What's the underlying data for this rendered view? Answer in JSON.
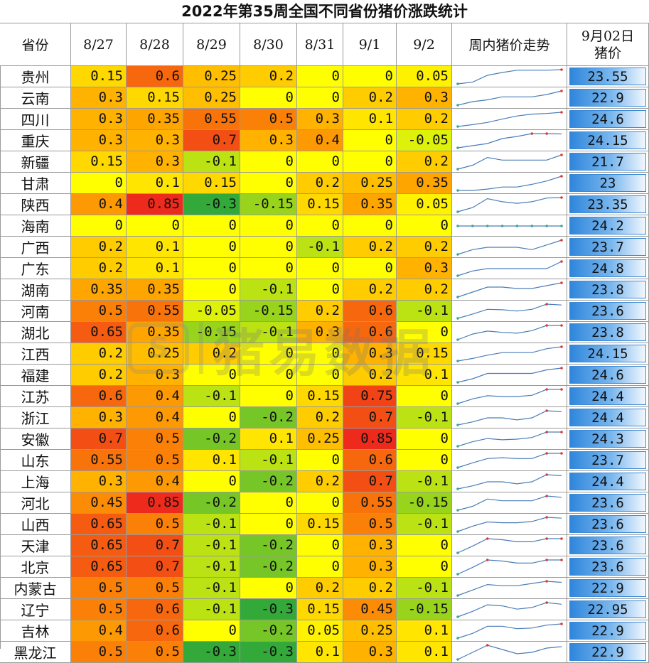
{
  "title": "2022年第35周全国不同省份猪价涨跌统计",
  "headers": {
    "province": "省份",
    "dates": [
      "8/27",
      "8/28",
      "8/29",
      "8/30",
      "8/31",
      "9/1",
      "9/2"
    ],
    "trend": "周内猪价走势",
    "price_line1": "9月02日",
    "price_line2": "猪价"
  },
  "watermark": {
    "logo": "S",
    "text": "猪易数据"
  },
  "colors": {
    "scale_neg_strong": "#33a93a",
    "scale_zero": "#ffff00",
    "scale_pos_mid": "#ffa500",
    "scale_pos_strong": "#ee2a1c",
    "trend_line": "#4a7db8",
    "trend_start": "#3aa88a",
    "trend_end": "#d83a3a",
    "price_bar": "#2f86dc"
  },
  "rows": [
    {
      "province": "贵州",
      "changes": [
        "0.15",
        "0.6",
        "0.25",
        "0.2",
        "0",
        "0",
        "0.05"
      ],
      "price": "23.55"
    },
    {
      "province": "云南",
      "changes": [
        "0.3",
        "0.15",
        "0.25",
        "0",
        "0",
        "0.2",
        "0.3"
      ],
      "price": "22.9"
    },
    {
      "province": "四川",
      "changes": [
        "0.3",
        "0.35",
        "0.55",
        "0.5",
        "0.3",
        "0.1",
        "0.2"
      ],
      "price": "24.6"
    },
    {
      "province": "重庆",
      "changes": [
        "0.3",
        "0.3",
        "0.7",
        "0.3",
        "0.4",
        "0",
        "-0.05"
      ],
      "price": "24.15"
    },
    {
      "province": "新疆",
      "changes": [
        "0.15",
        "0.3",
        "-0.1",
        "0",
        "0",
        "0",
        "0.2"
      ],
      "price": "21.7"
    },
    {
      "province": "甘肃",
      "changes": [
        "0",
        "0.1",
        "0.15",
        "0",
        "0.2",
        "0.25",
        "0.35"
      ],
      "price": "23"
    },
    {
      "province": "陕西",
      "changes": [
        "0.4",
        "0.85",
        "-0.3",
        "-0.15",
        "0.15",
        "0.35",
        "0.05"
      ],
      "price": "23.35"
    },
    {
      "province": "海南",
      "changes": [
        "0",
        "0",
        "0",
        "0",
        "0",
        "0",
        "0"
      ],
      "price": "24.2"
    },
    {
      "province": "广西",
      "changes": [
        "0.2",
        "0.1",
        "0",
        "0",
        "-0.1",
        "0.2",
        "0.2"
      ],
      "price": "23.7"
    },
    {
      "province": "广东",
      "changes": [
        "0.2",
        "0.1",
        "0",
        "0",
        "0",
        "0",
        "0.3"
      ],
      "price": "24.8"
    },
    {
      "province": "湖南",
      "changes": [
        "0.35",
        "0.35",
        "0",
        "-0.1",
        "0",
        "0.2",
        "0.2"
      ],
      "price": "23.8"
    },
    {
      "province": "河南",
      "changes": [
        "0.5",
        "0.55",
        "-0.05",
        "-0.15",
        "0.2",
        "0.6",
        "-0.1"
      ],
      "price": "23.6"
    },
    {
      "province": "湖北",
      "changes": [
        "0.65",
        "0.35",
        "-0.15",
        "-0.1",
        "0.3",
        "0.6",
        "0"
      ],
      "price": "23.8"
    },
    {
      "province": "江西",
      "changes": [
        "0.2",
        "0.25",
        "0.2",
        "0",
        "0",
        "0.3",
        "0.15"
      ],
      "price": "24.15"
    },
    {
      "province": "福建",
      "changes": [
        "0.2",
        "0.3",
        "0",
        "0",
        "0",
        "0.2",
        "0.1"
      ],
      "price": "24.6"
    },
    {
      "province": "江苏",
      "changes": [
        "0.6",
        "0.4",
        "-0.1",
        "0",
        "0.15",
        "0.75",
        "0"
      ],
      "price": "24.4"
    },
    {
      "province": "浙江",
      "changes": [
        "0.3",
        "0.4",
        "0",
        "-0.2",
        "0.2",
        "0.7",
        "-0.1"
      ],
      "price": "24.4"
    },
    {
      "province": "安徽",
      "changes": [
        "0.7",
        "0.5",
        "-0.2",
        "0.1",
        "0.25",
        "0.85",
        "0"
      ],
      "price": "24.3"
    },
    {
      "province": "山东",
      "changes": [
        "0.55",
        "0.5",
        "0.1",
        "-0.1",
        "0",
        "0.6",
        "0"
      ],
      "price": "23.7"
    },
    {
      "province": "上海",
      "changes": [
        "0.3",
        "0.4",
        "0",
        "-0.2",
        "0.2",
        "0.7",
        "-0.1"
      ],
      "price": "24.4"
    },
    {
      "province": "河北",
      "changes": [
        "0.45",
        "0.85",
        "-0.2",
        "0",
        "0",
        "0.55",
        "-0.15"
      ],
      "price": "23.6"
    },
    {
      "province": "山西",
      "changes": [
        "0.65",
        "0.5",
        "-0.1",
        "0",
        "0.15",
        "0.5",
        "-0.1"
      ],
      "price": "23.6"
    },
    {
      "province": "天津",
      "changes": [
        "0.65",
        "0.7",
        "-0.1",
        "-0.2",
        "0",
        "0.3",
        "0"
      ],
      "price": "23.6"
    },
    {
      "province": "北京",
      "changes": [
        "0.65",
        "0.7",
        "-0.1",
        "-0.2",
        "0",
        "0.3",
        "0"
      ],
      "price": "23.6"
    },
    {
      "province": "内蒙古",
      "changes": [
        "0.5",
        "0.5",
        "-0.1",
        "0",
        "0.2",
        "0.2",
        "-0.1"
      ],
      "price": "22.9"
    },
    {
      "province": "辽宁",
      "changes": [
        "0.5",
        "0.6",
        "-0.1",
        "-0.3",
        "0.15",
        "0.45",
        "-0.15"
      ],
      "price": "22.95"
    },
    {
      "province": "吉林",
      "changes": [
        "0.4",
        "0.6",
        "0",
        "-0.2",
        "0.05",
        "0.25",
        "0.1"
      ],
      "price": "22.9"
    },
    {
      "province": "黑龙江",
      "changes": [
        "0.5",
        "0.5",
        "-0.3",
        "-0.3",
        "0.1",
        "0.3",
        "0.1"
      ],
      "price": "22.9"
    }
  ]
}
